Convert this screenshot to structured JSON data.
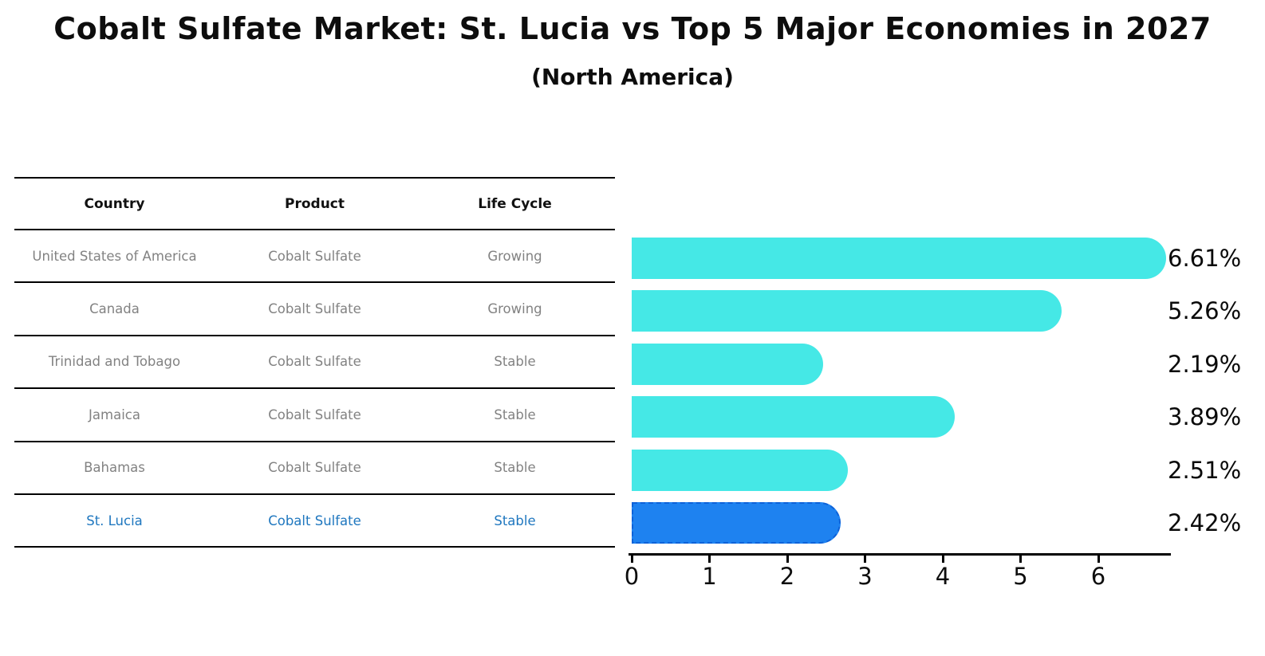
{
  "title": "Cobalt Sulfate Market: St. Lucia vs Top 5 Major Economies in 2027",
  "subtitle": "(North America)",
  "table": {
    "columns": [
      "Country",
      "Product",
      "Life Cycle"
    ],
    "rows": [
      {
        "country": "United States of America",
        "product": "Cobalt Sulfate",
        "life_cycle": "Growing",
        "highlighted": false
      },
      {
        "country": "Canada",
        "product": "Cobalt Sulfate",
        "life_cycle": "Growing",
        "highlighted": false
      },
      {
        "country": "Trinidad and Tobago",
        "product": "Cobalt Sulfate",
        "life_cycle": "Stable",
        "highlighted": false
      },
      {
        "country": "Jamaica",
        "product": "Cobalt Sulfate",
        "life_cycle": "Stable",
        "highlighted": false
      },
      {
        "country": "Bahamas",
        "product": "Cobalt Sulfate",
        "life_cycle": "Stable",
        "highlighted": false
      },
      {
        "country": "St. Lucia",
        "product": "Cobalt Sulfate",
        "life_cycle": "Stable",
        "highlighted": true
      }
    ]
  },
  "chart_data": {
    "type": "bar",
    "orientation": "horizontal",
    "title": "Cobalt Sulfate Market: St. Lucia vs Top 5 Major Economies in 2027",
    "subtitle": "(North America)",
    "categories": [
      "United States of America",
      "Canada",
      "Trinidad and Tobago",
      "Jamaica",
      "Bahamas",
      "St. Lucia"
    ],
    "values": [
      6.61,
      5.26,
      2.19,
      3.89,
      2.51,
      2.42
    ],
    "value_labels": [
      "6.61%",
      "5.26%",
      "2.19%",
      "3.89%",
      "2.51%",
      "2.42%"
    ],
    "xlabel": "",
    "ylabel": "",
    "xticks": [
      0,
      1,
      2,
      3,
      4,
      5,
      6
    ],
    "xlim": [
      0,
      6.93
    ],
    "grid": false,
    "legend": false,
    "bar_color": "#45E8E6",
    "highlight_bar_color": "#1E82F0",
    "highlight_edge_color": "#0d62d9",
    "highlight_index": 5,
    "highlight_text_color": "#1f77bf",
    "row_text_color": "#828282"
  }
}
